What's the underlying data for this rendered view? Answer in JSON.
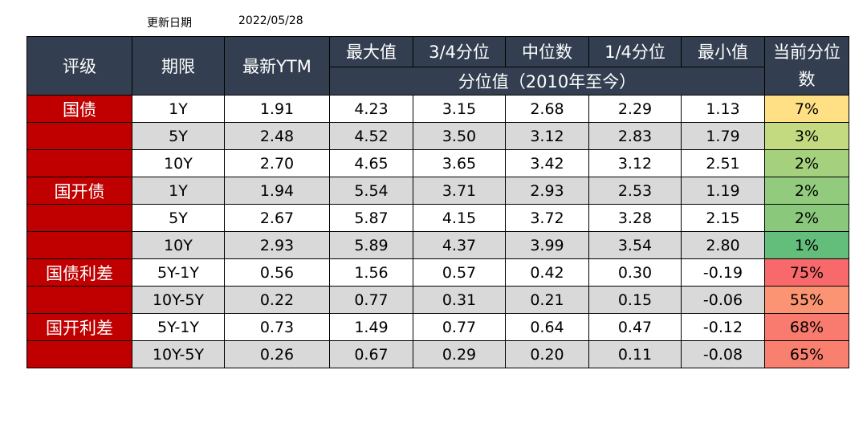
{
  "update": {
    "label": "更新日期",
    "date": "2022/05/28"
  },
  "headers": {
    "rating": "评级",
    "tenor": "期限",
    "latest_ytm": "最新YTM",
    "max": "最大值",
    "q3": "3/4分位",
    "median": "中位数",
    "q1": "1/4分位",
    "min": "最小值",
    "percentile": "当前分位数",
    "sub_header": "分位值（2010年至今）"
  },
  "rows": [
    {
      "rating": "国债",
      "tenor": "1Y",
      "ytm": "1.91",
      "max": "4.23",
      "q3": "3.15",
      "median": "2.68",
      "q1": "2.29",
      "min": "1.13",
      "pct": "7%",
      "pct_color": "#ffe084"
    },
    {
      "rating": "",
      "tenor": "5Y",
      "ytm": "2.48",
      "max": "4.52",
      "q3": "3.50",
      "median": "3.12",
      "q1": "2.83",
      "min": "1.79",
      "pct": "3%",
      "pct_color": "#c4da80"
    },
    {
      "rating": "",
      "tenor": "10Y",
      "ytm": "2.70",
      "max": "4.65",
      "q3": "3.65",
      "median": "3.42",
      "q1": "3.12",
      "min": "2.51",
      "pct": "2%",
      "pct_color": "#a5d17e"
    },
    {
      "rating": "国开债",
      "tenor": "1Y",
      "ytm": "1.94",
      "max": "5.54",
      "q3": "3.71",
      "median": "2.93",
      "q1": "2.53",
      "min": "1.19",
      "pct": "2%",
      "pct_color": "#92cb7d"
    },
    {
      "rating": "",
      "tenor": "5Y",
      "ytm": "2.67",
      "max": "5.87",
      "q3": "4.15",
      "median": "3.72",
      "q1": "3.28",
      "min": "2.15",
      "pct": "2%",
      "pct_color": "#8ac97c"
    },
    {
      "rating": "",
      "tenor": "10Y",
      "ytm": "2.93",
      "max": "5.89",
      "q3": "4.37",
      "median": "3.99",
      "q1": "3.54",
      "min": "2.80",
      "pct": "1%",
      "pct_color": "#63be7b"
    },
    {
      "rating": "国债利差",
      "tenor": "5Y-1Y",
      "ytm": "0.56",
      "max": "1.56",
      "q3": "0.57",
      "median": "0.42",
      "q1": "0.30",
      "min": "-0.19",
      "pct": "75%",
      "pct_color": "#f8696b"
    },
    {
      "rating": "",
      "tenor": "10Y-5Y",
      "ytm": "0.22",
      "max": "0.77",
      "q3": "0.31",
      "median": "0.21",
      "q1": "0.15",
      "min": "-0.06",
      "pct": "55%",
      "pct_color": "#fa9473"
    },
    {
      "rating": "国开利差",
      "tenor": "5Y-1Y",
      "ytm": "0.73",
      "max": "1.49",
      "q3": "0.77",
      "median": "0.64",
      "q1": "0.47",
      "min": "-0.12",
      "pct": "68%",
      "pct_color": "#f97a6e"
    },
    {
      "rating": "",
      "tenor": "10Y-5Y",
      "ytm": "0.26",
      "max": "0.67",
      "q3": "0.29",
      "median": "0.20",
      "q1": "0.11",
      "min": "-0.08",
      "pct": "65%",
      "pct_color": "#f97f6f"
    }
  ]
}
